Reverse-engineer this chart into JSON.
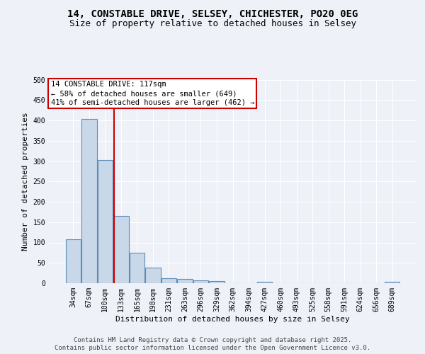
{
  "title_line1": "14, CONSTABLE DRIVE, SELSEY, CHICHESTER, PO20 0EG",
  "title_line2": "Size of property relative to detached houses in Selsey",
  "xlabel": "Distribution of detached houses by size in Selsey",
  "ylabel": "Number of detached properties",
  "categories": [
    "34sqm",
    "67sqm",
    "100sqm",
    "133sqm",
    "165sqm",
    "198sqm",
    "231sqm",
    "263sqm",
    "296sqm",
    "329sqm",
    "362sqm",
    "394sqm",
    "427sqm",
    "460sqm",
    "493sqm",
    "525sqm",
    "558sqm",
    "591sqm",
    "624sqm",
    "656sqm",
    "689sqm"
  ],
  "values": [
    107,
    403,
    303,
    165,
    75,
    38,
    13,
    10,
    7,
    5,
    0,
    0,
    4,
    0,
    0,
    0,
    0,
    0,
    0,
    0,
    4
  ],
  "bar_color": "#c8d8e8",
  "bar_edge_color": "#5b8db8",
  "red_line_x": 2.58,
  "annotation_text_line1": "14 CONSTABLE DRIVE: 117sqm",
  "annotation_text_line2": "← 58% of detached houses are smaller (649)",
  "annotation_text_line3": "41% of semi-detached houses are larger (462) →",
  "annotation_box_color": "#ffffff",
  "annotation_box_edge": "#cc0000",
  "ylim": [
    0,
    500
  ],
  "yticks": [
    0,
    50,
    100,
    150,
    200,
    250,
    300,
    350,
    400,
    450,
    500
  ],
  "footer_line1": "Contains HM Land Registry data © Crown copyright and database right 2025.",
  "footer_line2": "Contains public sector information licensed under the Open Government Licence v3.0.",
  "background_color": "#eef2f8",
  "grid_color": "#ffffff",
  "title_fontsize": 10,
  "subtitle_fontsize": 9,
  "axis_label_fontsize": 8,
  "tick_fontsize": 7,
  "annotation_fontsize": 7.5,
  "footer_fontsize": 6.5
}
